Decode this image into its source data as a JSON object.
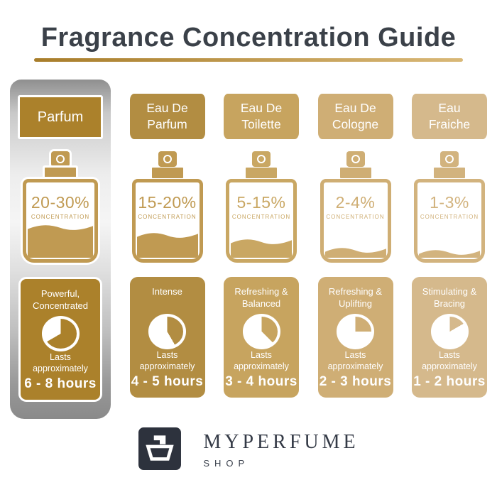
{
  "title": "Fragrance Concentration Guide",
  "labels": {
    "concentration": "CONCENTRATION",
    "lasts": "Lasts approximately"
  },
  "accent_underline": {
    "from": "#a87d2a",
    "to": "#d9b877"
  },
  "columns": [
    {
      "name": "Parfum",
      "concentration": "20-30%",
      "character": "Powerful, Concentrated",
      "duration": "6 - 8 hours",
      "color": "#ab812b",
      "bottle_color": "#c09a52",
      "fill_percent": 45,
      "pie_degrees": 240,
      "highlighted": true
    },
    {
      "name": "Eau De Parfum",
      "concentration": "15-20%",
      "character": "Intense",
      "duration": "4 - 5 hours",
      "color": "#b28d42",
      "bottle_color": "#c09a52",
      "fill_percent": 35,
      "pie_degrees": 150,
      "highlighted": false
    },
    {
      "name": "Eau De Toilette",
      "concentration": "5-15%",
      "character": "Refreshing & Balanced",
      "duration": "3 - 4 hours",
      "color": "#c7a45f",
      "bottle_color": "#c9a763",
      "fill_percent": 27,
      "pie_degrees": 135,
      "highlighted": false
    },
    {
      "name": "Eau De Cologne",
      "concentration": "2-4%",
      "character": "Refreshing & Uplifting",
      "duration": "2 - 3 hours",
      "color": "#cfae75",
      "bottle_color": "#cfae74",
      "fill_percent": 16,
      "pie_degrees": 90,
      "highlighted": false
    },
    {
      "name": "Eau Fraiche",
      "concentration": "1-3%",
      "character": "Stimulating & Bracing",
      "duration": "1 - 2 hours",
      "color": "#d5b98c",
      "bottle_color": "#d2b37e",
      "fill_percent": 13,
      "pie_degrees": 60,
      "highlighted": false
    }
  ],
  "footer": {
    "brand": "MYPERFUME",
    "sub": "SHOP"
  },
  "logo": {
    "icon": "perfume-bottle-in-square",
    "bg": "#2d323d"
  }
}
